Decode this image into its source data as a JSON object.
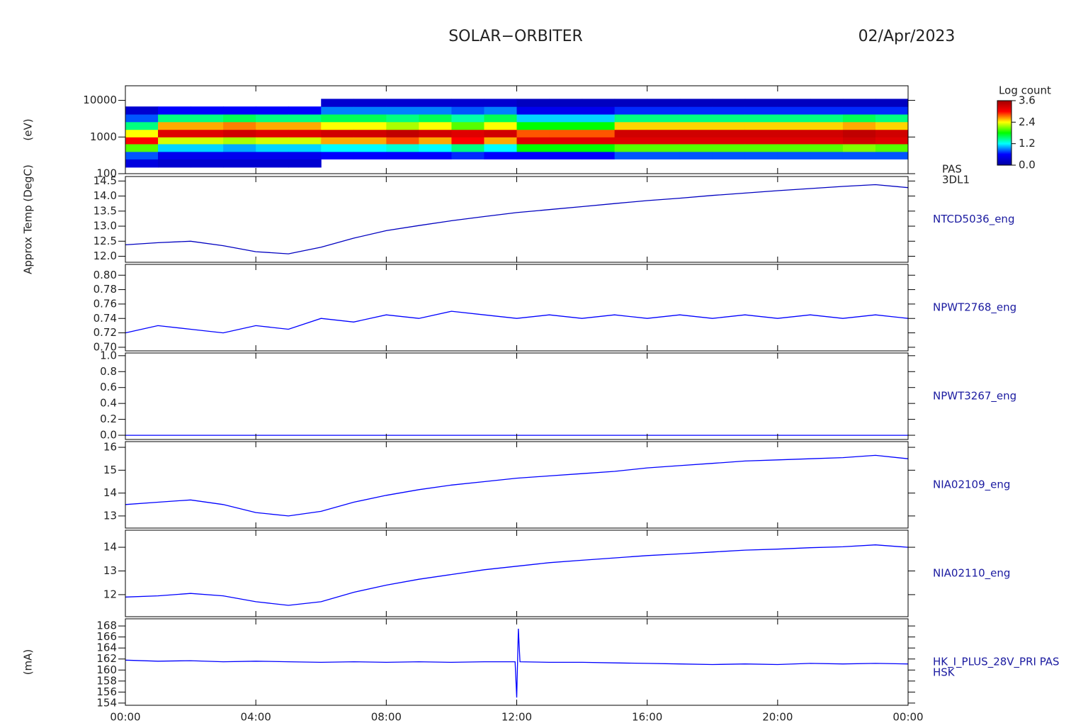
{
  "title": "SOLAR−ORBITER",
  "date": "02/Apr/2023",
  "chart_data": [
    {
      "type": "heatmap",
      "ylabel": "(eV)",
      "labels": [
        "PAS",
        "3DL1"
      ],
      "log": true,
      "x": [
        0,
        1,
        2,
        3,
        4,
        5,
        6,
        7,
        8,
        9,
        10,
        11,
        12,
        13,
        14,
        15,
        16,
        17,
        18,
        19,
        20,
        21,
        22,
        23,
        24
      ],
      "y": [
        150,
        250,
        400,
        650,
        1000,
        1600,
        2600,
        4200,
        6800,
        11000
      ],
      "z": [
        [
          0.4,
          0.8,
          2.0,
          3.0,
          2.4,
          1.5,
          0.8,
          0.3,
          null
        ],
        [
          0.3,
          0.5,
          1.1,
          2.3,
          3.2,
          2.6,
          1.5,
          0.6,
          null
        ],
        [
          0.3,
          0.5,
          1.1,
          2.3,
          3.2,
          2.6,
          1.5,
          0.6,
          null
        ],
        [
          0.3,
          0.5,
          1.0,
          2.2,
          3.3,
          2.7,
          1.6,
          0.6,
          null
        ],
        [
          0.3,
          0.5,
          1.1,
          2.3,
          3.2,
          2.6,
          1.5,
          0.6,
          null
        ],
        [
          0.3,
          0.5,
          1.1,
          2.3,
          3.2,
          2.6,
          1.5,
          0.6,
          null
        ],
        [
          null,
          0.6,
          1.2,
          2.6,
          3.3,
          2.4,
          1.6,
          0.9,
          0.3
        ],
        [
          null,
          0.6,
          1.2,
          2.6,
          3.3,
          2.4,
          1.6,
          0.9,
          0.3
        ],
        [
          null,
          0.6,
          1.3,
          2.8,
          3.4,
          2.2,
          1.5,
          0.9,
          0.3
        ],
        [
          null,
          0.6,
          1.2,
          2.6,
          3.3,
          2.4,
          1.6,
          0.9,
          0.3
        ],
        [
          null,
          0.7,
          1.5,
          3.0,
          3.2,
          2.0,
          1.4,
          0.8,
          0.3
        ],
        [
          null,
          0.6,
          1.2,
          2.6,
          3.3,
          2.4,
          1.6,
          0.9,
          0.3
        ],
        [
          null,
          0.6,
          1.8,
          3.2,
          2.8,
          1.8,
          1.1,
          0.5,
          0.2
        ],
        [
          null,
          0.6,
          1.8,
          3.2,
          2.8,
          1.8,
          1.1,
          0.5,
          0.2
        ],
        [
          null,
          0.6,
          1.8,
          3.2,
          2.8,
          1.8,
          1.1,
          0.5,
          0.2
        ],
        [
          null,
          0.8,
          2.0,
          3.2,
          3.3,
          2.5,
          1.5,
          0.7,
          0.2
        ],
        [
          null,
          0.8,
          2.0,
          3.2,
          3.3,
          2.5,
          1.5,
          0.7,
          0.2
        ],
        [
          null,
          0.8,
          2.0,
          3.2,
          3.3,
          2.5,
          1.5,
          0.7,
          0.2
        ],
        [
          null,
          0.8,
          2.0,
          3.2,
          3.3,
          2.5,
          1.5,
          0.7,
          0.2
        ],
        [
          null,
          0.8,
          2.0,
          3.2,
          3.3,
          2.5,
          1.5,
          0.7,
          0.2
        ],
        [
          null,
          0.8,
          2.0,
          3.2,
          3.3,
          2.5,
          1.5,
          0.7,
          0.2
        ],
        [
          null,
          0.8,
          2.0,
          3.2,
          3.3,
          2.5,
          1.5,
          0.7,
          0.2
        ],
        [
          null,
          0.8,
          2.1,
          3.3,
          3.4,
          2.6,
          1.6,
          0.7,
          0.2
        ],
        [
          null,
          0.8,
          2.0,
          3.2,
          3.3,
          2.5,
          1.5,
          0.7,
          0.2
        ]
      ],
      "ylim": [
        100,
        25000
      ],
      "yticks": [
        100,
        1000,
        10000
      ],
      "zlabel": "Log count",
      "zlim": [
        0,
        3.6
      ],
      "zticks": [
        {
          "value": 0,
          "label": "0.0"
        },
        {
          "value": 1.2,
          "label": "1.2"
        },
        {
          "value": 2.4,
          "label": "2.4"
        },
        {
          "value": 3.6,
          "label": "3.6"
        }
      ],
      "colors": [
        "#0000a0",
        "#0000ff",
        "#00ffff",
        "#00ff00",
        "#ffff00",
        "#ff0000",
        "#a00000"
      ]
    },
    {
      "type": "line",
      "ylabel": "Approx Temp (DegC)",
      "labels": [
        "NTCD5036_eng"
      ],
      "color": "#0000c0",
      "x": [
        0,
        1,
        2,
        3,
        4,
        5,
        6,
        7,
        8,
        9,
        10,
        11,
        12,
        13,
        14,
        15,
        16,
        17,
        18,
        19,
        20,
        21,
        22,
        23,
        24
      ],
      "values": [
        12.38,
        12.45,
        12.5,
        12.35,
        12.15,
        12.08,
        12.3,
        12.6,
        12.85,
        13.02,
        13.18,
        13.32,
        13.45,
        13.55,
        13.65,
        13.75,
        13.85,
        13.93,
        14.02,
        14.1,
        14.18,
        14.25,
        14.32,
        14.38,
        14.28
      ],
      "ylim": [
        11.8,
        14.65
      ],
      "yticks": [
        {
          "value": 12,
          "label": "12.0"
        },
        12.5,
        {
          "value": 13,
          "label": "13.0"
        },
        13.5,
        {
          "value": 14,
          "label": "14.0"
        },
        14.5
      ]
    },
    {
      "type": "line",
      "labels": [
        "NPWT2768_eng"
      ],
      "color": "#0000ff",
      "x": [
        0,
        1,
        2,
        3,
        4,
        5,
        6,
        7,
        8,
        9,
        10,
        11,
        12,
        13,
        14,
        15,
        16,
        17,
        18,
        19,
        20,
        21,
        22,
        23,
        24
      ],
      "values": [
        0.72,
        0.73,
        0.725,
        0.72,
        0.73,
        0.725,
        0.74,
        0.735,
        0.745,
        0.74,
        0.75,
        0.745,
        0.74,
        0.745,
        0.74,
        0.745,
        0.74,
        0.745,
        0.74,
        0.745,
        0.74,
        0.745,
        0.74,
        0.745,
        0.74
      ],
      "ylim": [
        0.695,
        0.815
      ],
      "yticks": [
        {
          "value": 0.7,
          "label": "0.70"
        },
        0.72,
        0.74,
        0.76,
        0.78,
        {
          "value": 0.8,
          "label": "0.80"
        }
      ]
    },
    {
      "type": "line",
      "labels": [
        "NPWT3267_eng"
      ],
      "color": "#0000ff",
      "x": [
        0,
        1,
        2,
        3,
        4,
        5,
        6,
        7,
        8,
        9,
        10,
        11,
        12,
        13,
        14,
        15,
        16,
        17,
        18,
        19,
        20,
        21,
        22,
        23,
        24
      ],
      "values": [
        0,
        0,
        0,
        0,
        0,
        0,
        0,
        0,
        0,
        0,
        0,
        0,
        0,
        0,
        0,
        0,
        0,
        0,
        0,
        0,
        0,
        0,
        0,
        0,
        0
      ],
      "ylim": [
        -0.053,
        1.034
      ],
      "yticks": [
        {
          "value": 0,
          "label": "0.0"
        },
        0.2,
        0.4,
        0.6,
        0.8,
        {
          "value": 1,
          "label": "1.0"
        }
      ]
    },
    {
      "type": "line",
      "labels": [
        "NIA02109_eng"
      ],
      "color": "#0000ff",
      "x": [
        0,
        1,
        2,
        3,
        4,
        5,
        6,
        7,
        8,
        9,
        10,
        11,
        12,
        13,
        14,
        15,
        16,
        17,
        18,
        19,
        20,
        21,
        22,
        23,
        24
      ],
      "values": [
        13.5,
        13.6,
        13.7,
        13.5,
        13.15,
        13.0,
        13.2,
        13.6,
        13.9,
        14.15,
        14.35,
        14.5,
        14.65,
        14.75,
        14.85,
        14.95,
        15.1,
        15.2,
        15.3,
        15.4,
        15.45,
        15.5,
        15.55,
        15.65,
        15.5
      ],
      "ylim": [
        12.47,
        16.25
      ],
      "yticks": [
        13,
        14,
        15,
        16
      ]
    },
    {
      "type": "line",
      "labels": [
        "NIA02110_eng"
      ],
      "color": "#0000ff",
      "x": [
        0,
        1,
        2,
        3,
        4,
        5,
        6,
        7,
        8,
        9,
        10,
        11,
        12,
        13,
        14,
        15,
        16,
        17,
        18,
        19,
        20,
        21,
        22,
        23,
        24
      ],
      "values": [
        11.9,
        11.95,
        12.05,
        11.95,
        11.7,
        11.55,
        11.7,
        12.1,
        12.4,
        12.65,
        12.85,
        13.05,
        13.2,
        13.35,
        13.45,
        13.55,
        13.65,
        13.72,
        13.8,
        13.88,
        13.92,
        13.98,
        14.02,
        14.1,
        14.0
      ],
      "ylim": [
        11.07,
        14.72
      ],
      "yticks": [
        12,
        13,
        14
      ]
    },
    {
      "type": "line",
      "ylabel": "(mA)",
      "labels": [
        "HK_I_PLUS_28V_PRI PAS",
        "HSK"
      ],
      "color": "#0000ff",
      "x": [
        0,
        1,
        2,
        3,
        4,
        5,
        6,
        7,
        8,
        9,
        10,
        11,
        11.95,
        12.0,
        12.05,
        12.1,
        13,
        14,
        15,
        16,
        17,
        18,
        19,
        20,
        21,
        22,
        23,
        24
      ],
      "values": [
        161.8,
        161.6,
        161.7,
        161.5,
        161.6,
        161.5,
        161.4,
        161.5,
        161.4,
        161.5,
        161.4,
        161.5,
        161.5,
        155,
        167.5,
        161.5,
        161.4,
        161.4,
        161.3,
        161.2,
        161.1,
        161.0,
        161.1,
        161.0,
        161.2,
        161.1,
        161.2,
        161.1
      ],
      "ylim": [
        153.6,
        169.3
      ],
      "yticks": [
        154,
        156,
        158,
        160,
        162,
        164,
        166,
        168
      ],
      "xlim": [
        0,
        24
      ],
      "xticks": [
        {
          "value": 0,
          "label": "00:00"
        },
        {
          "value": 4,
          "label": "04:00"
        },
        {
          "value": 8,
          "label": "08:00"
        },
        {
          "value": 12,
          "label": "12:00"
        },
        {
          "value": 16,
          "label": "16:00"
        },
        {
          "value": 20,
          "label": "20:00"
        },
        {
          "value": 24,
          "label": "00:00"
        }
      ]
    }
  ]
}
